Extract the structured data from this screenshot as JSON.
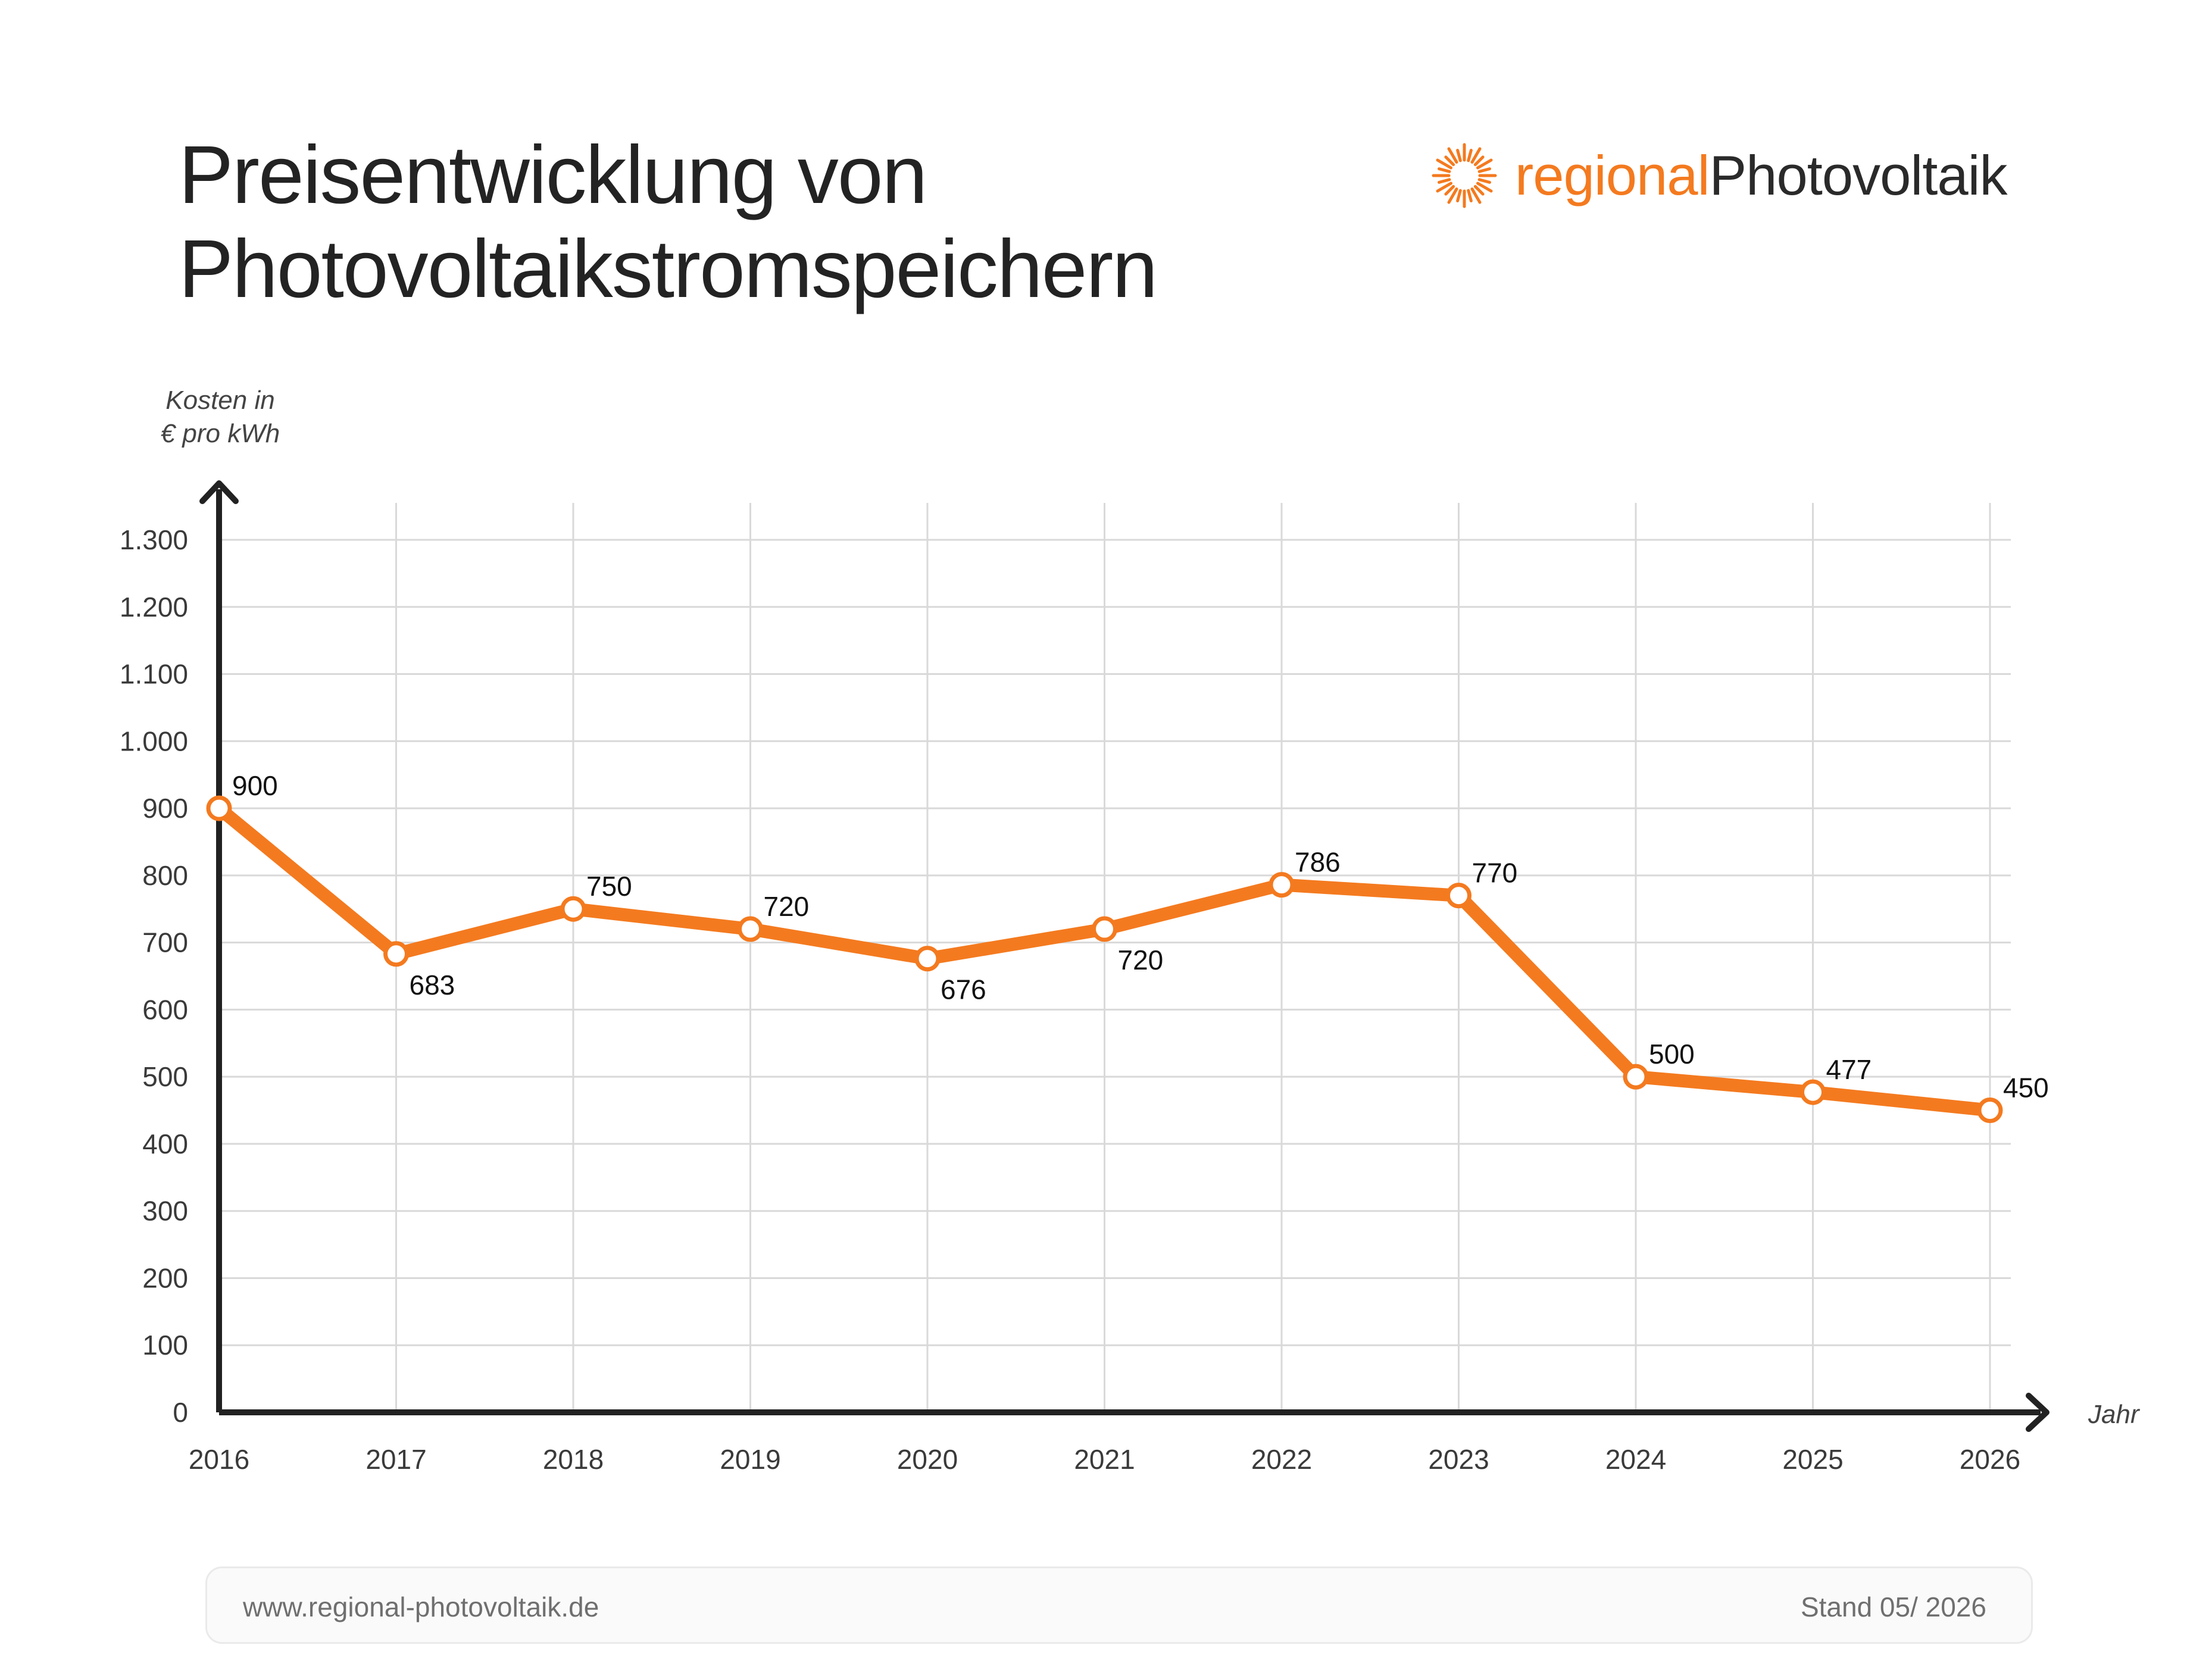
{
  "header": {
    "title_line1": "Preisentwicklung von",
    "title_line2": "Photovoltaikstromspeichern",
    "logo_part1": "regional",
    "logo_part2": "Photovoltaik",
    "logo_icon": "sun-rays-icon"
  },
  "colors": {
    "accent": "#f47a1f",
    "axis": "#222222",
    "grid": "#d9d9d9"
  },
  "chart_data": {
    "type": "line",
    "title": "Preisentwicklung von Photovoltaikstromspeichern",
    "ylabel_line1": "Kosten in",
    "ylabel_line2": "€ pro kWh",
    "xlabel": "Jahr",
    "x": [
      "2016",
      "2017",
      "2018",
      "2019",
      "2020",
      "2021",
      "2022",
      "2023",
      "2024",
      "2025",
      "2026"
    ],
    "values": [
      900,
      683,
      750,
      720,
      676,
      720,
      786,
      770,
      500,
      477,
      450
    ],
    "data_labels": [
      "900",
      "683",
      "750",
      "720",
      "676",
      "720",
      "786",
      "770",
      "500",
      "477",
      "450"
    ],
    "label_positions": [
      "above",
      "below",
      "above",
      "above",
      "below",
      "below",
      "above",
      "above",
      "above",
      "above",
      "above"
    ],
    "ylim": [
      0,
      1300
    ],
    "yticks": [
      0,
      100,
      200,
      300,
      400,
      500,
      600,
      700,
      800,
      900,
      1000,
      1100,
      1200,
      1300
    ],
    "ytick_labels": [
      "0",
      "100",
      "200",
      "300",
      "400",
      "500",
      "600",
      "700",
      "800",
      "900",
      "1.000",
      "1.100",
      "1.200",
      "1.300"
    ],
    "grid": true,
    "legend": "none"
  },
  "footer": {
    "url": "www.regional-photovoltaik.de",
    "stand": "Stand 05/ 2026"
  }
}
